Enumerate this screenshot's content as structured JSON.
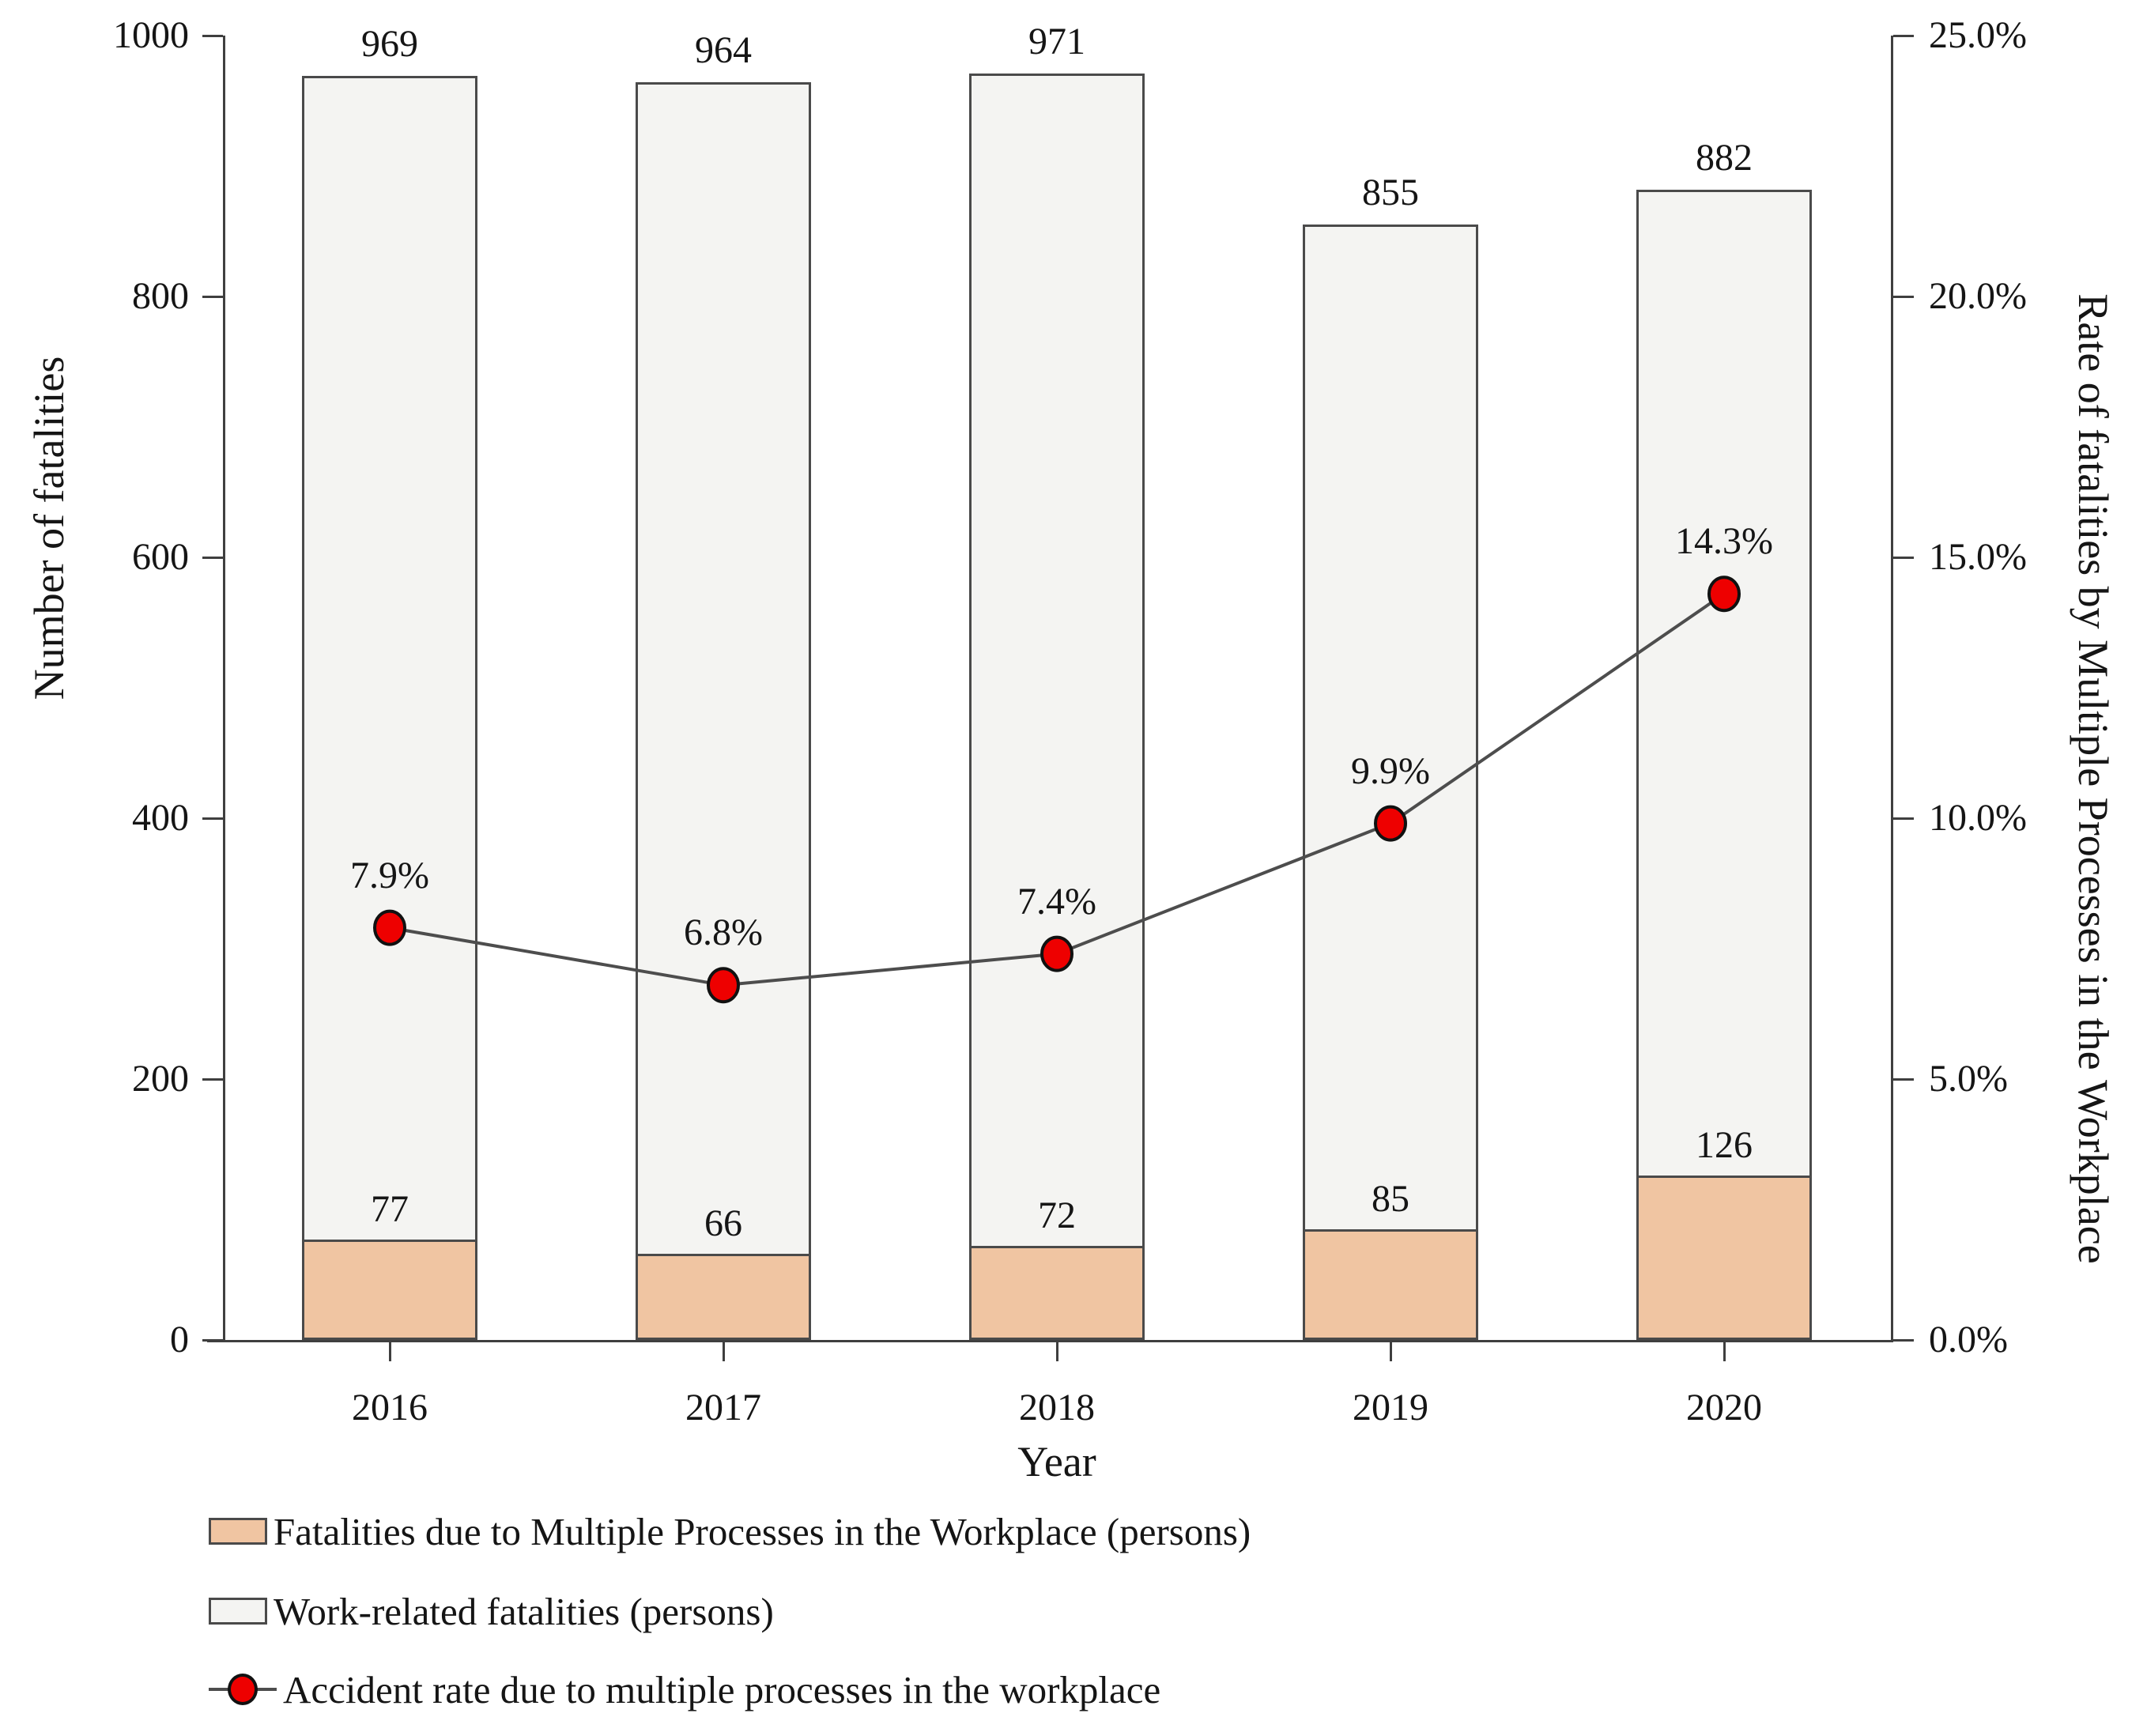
{
  "chart_data": {
    "type": "bar+line dual-axis",
    "categories": [
      "2016",
      "2017",
      "2018",
      "2019",
      "2020"
    ],
    "series": [
      {
        "name": "Fatalities due to Multiple Processes in the Workplace (persons)",
        "type": "bar",
        "color": "#f0c5a2",
        "values": [
          77,
          66,
          72,
          85,
          126
        ],
        "value_labels": [
          "77",
          "66",
          "72",
          "85",
          "126"
        ]
      },
      {
        "name": "Work-related fatalities (persons)",
        "type": "bar",
        "color": "#f4f4f2",
        "values": [
          969,
          964,
          971,
          855,
          882
        ],
        "value_labels": [
          "969",
          "964",
          "971",
          "855",
          "882"
        ]
      },
      {
        "name": "Accident rate due to multiple processes in the workplace",
        "type": "line",
        "color": "#ee0000",
        "line_color": "#4d4d4d",
        "values_percent": [
          7.9,
          6.8,
          7.4,
          9.9,
          14.3
        ],
        "value_labels": [
          "7.9%",
          "6.8%",
          "7.4%",
          "9.9%",
          "14.3%"
        ]
      }
    ],
    "xlabel": "Year",
    "ylabel_left": "Number of fatalities",
    "ylabel_right": "Rate of fatalities by Multiple Processes in the Workplace",
    "left_axis": {
      "range": [
        0,
        1000
      ],
      "tick_values": [
        0,
        200,
        400,
        600,
        800,
        1000
      ],
      "tick_labels": [
        "0",
        "200",
        "400",
        "600",
        "800",
        "1000"
      ]
    },
    "right_axis": {
      "range": [
        0,
        25
      ],
      "tick_values": [
        0,
        5,
        10,
        15,
        20,
        25
      ],
      "tick_labels": [
        "0.0%",
        "5.0%",
        "10.0%",
        "15.0%",
        "20.0%",
        "25.0%"
      ]
    },
    "legend_position": "bottom-left",
    "grid": false
  }
}
